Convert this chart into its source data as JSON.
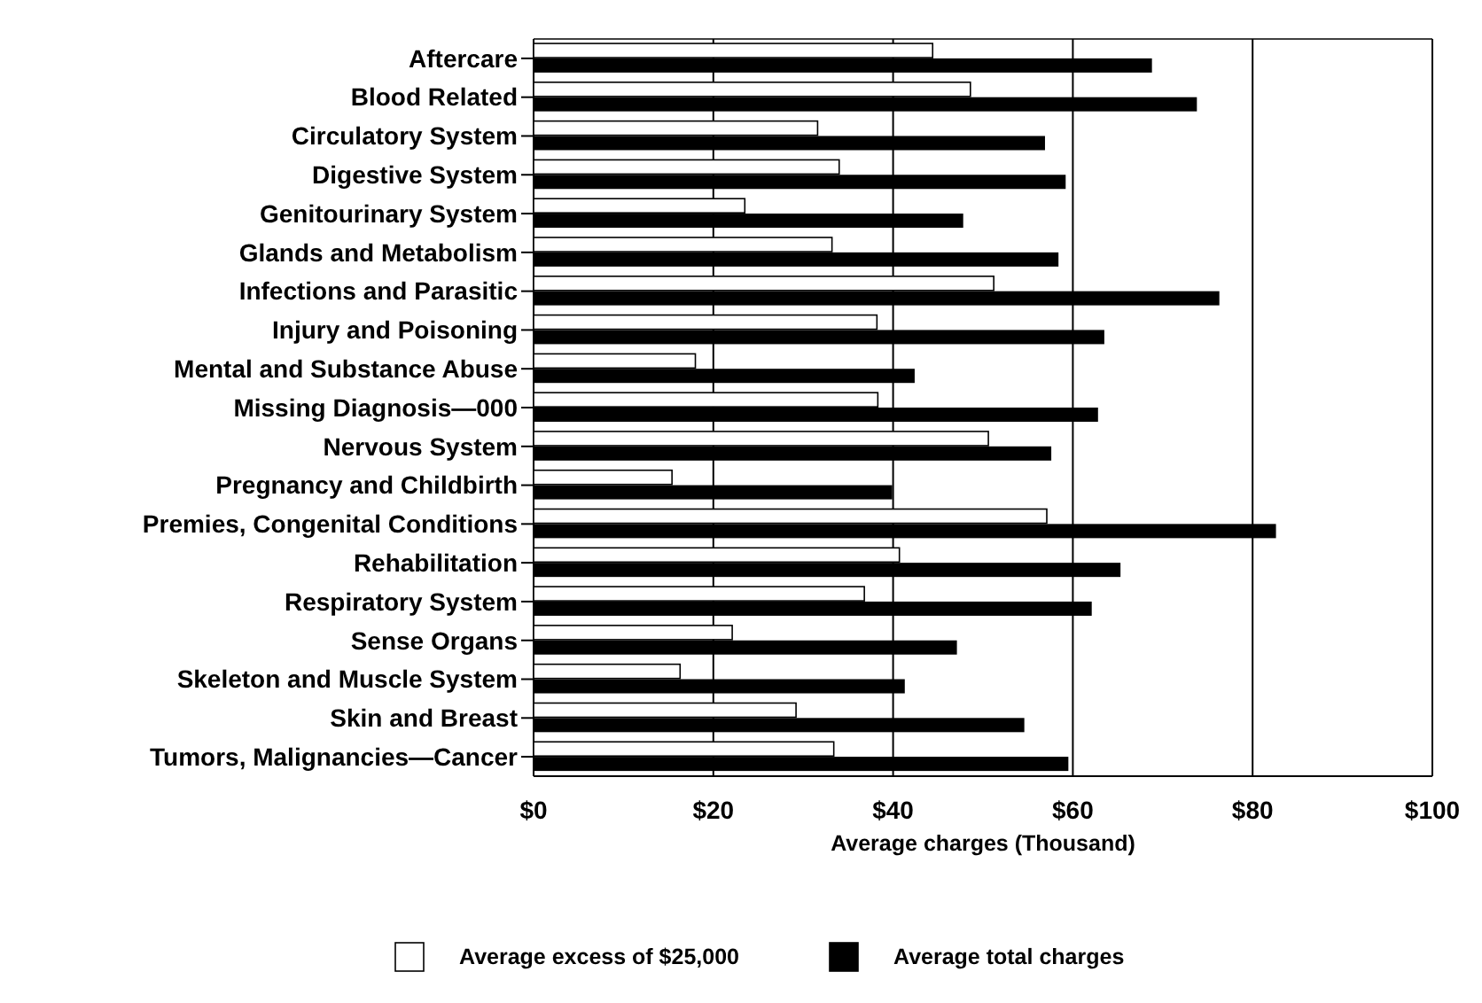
{
  "chart_data": {
    "type": "bar",
    "orientation": "horizontal",
    "xlabel": "Average charges (Thousand)",
    "categories": [
      "Aftercare",
      "Blood Related",
      "Circulatory System",
      "Digestive System",
      "Genitourinary System",
      "Glands and Metabolism",
      "Infections and Parasitic",
      "Injury and Poisoning",
      "Mental and Substance Abuse",
      "Missing Diagnosis—000",
      "Nervous System",
      "Pregnancy and Childbirth",
      "Premies, Congenital Conditions",
      "Rehabilitation",
      "Respiratory System",
      "Sense Organs",
      "Skeleton and Muscle System",
      "Skin and Breast",
      "Tumors, Malignancies—Cancer"
    ],
    "series": [
      {
        "name": "Average excess of $25,000",
        "color": "#ffffff",
        "values": [
          44.4,
          48.6,
          31.6,
          34.0,
          23.5,
          33.2,
          51.2,
          38.2,
          18.0,
          38.3,
          50.6,
          15.4,
          57.1,
          40.7,
          36.8,
          22.1,
          16.3,
          29.2,
          33.4
        ]
      },
      {
        "name": "Average total charges",
        "color": "#000000",
        "values": [
          68.8,
          73.8,
          56.9,
          59.2,
          47.8,
          58.4,
          76.3,
          63.5,
          42.4,
          62.8,
          57.6,
          39.9,
          82.6,
          65.3,
          62.1,
          47.1,
          41.3,
          54.6,
          59.5
        ]
      }
    ],
    "xlim": [
      0,
      100
    ],
    "xticks": [
      {
        "value": 0,
        "label": "$0"
      },
      {
        "value": 20,
        "label": "$20"
      },
      {
        "value": 40,
        "label": "$40"
      },
      {
        "value": 60,
        "label": "$60"
      },
      {
        "value": 80,
        "label": "$80"
      },
      {
        "value": 100,
        "label": "$100"
      }
    ],
    "grid": "x",
    "legend": "bottom"
  }
}
